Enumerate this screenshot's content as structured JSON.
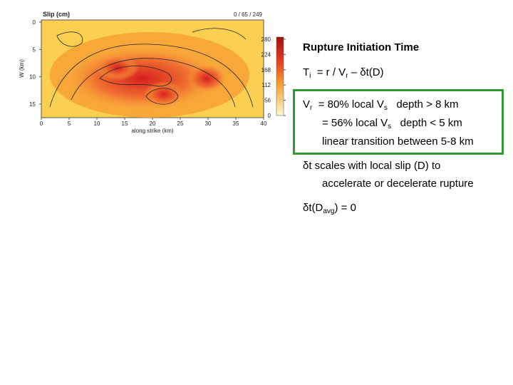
{
  "figure": {
    "title": "Slip (cm)",
    "info": "0 / 65 / 249",
    "y_label": "W (km)",
    "x_label": "along strike (km)",
    "y_ticks": [
      0,
      5,
      10,
      15
    ],
    "x_ticks": [
      0,
      5,
      10,
      15,
      20,
      25,
      30,
      35,
      40
    ],
    "colorbar_ticks": [
      280,
      224,
      168,
      112,
      56,
      0
    ]
  },
  "slide": {
    "title": "Rupture Initiation Time",
    "eq1": {
      "lhs": "T",
      "lhs_sub": "i",
      "rhs": "= r / V",
      "rhs_sub": "r",
      "tail": "– δt(D)"
    },
    "box": {
      "l1_a": "V",
      "l1_sub": "r",
      "l1_b": "= 80% local V",
      "l1_sub2": "s",
      "l1_c": "depth > 8 km",
      "l2_a": "= 56% local V",
      "l2_sub": "s",
      "l2_b": "depth < 5 km",
      "l3": "linear transition between 5-8 km"
    },
    "note1": [
      "δt scales with local slip (D) to",
      "accelerate or decelerate rupture"
    ],
    "note2": {
      "a": "δt(D",
      "sub": "avg",
      "b": ") = 0"
    }
  }
}
